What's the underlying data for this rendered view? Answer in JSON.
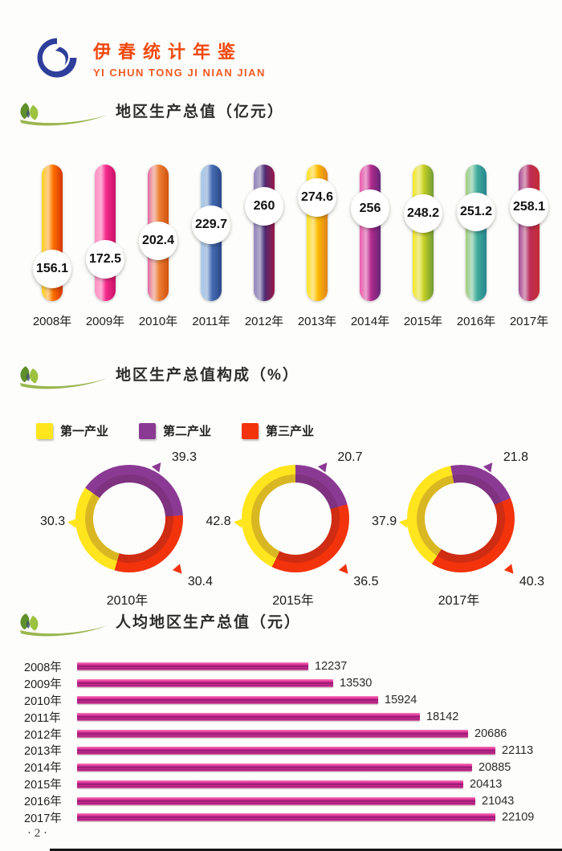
{
  "header": {
    "title": "伊春统计年鉴",
    "subtitle": "YI CHUN TONG JI NIAN JIAN",
    "logo_color": "#2e3e9b"
  },
  "footer": {
    "page_number": "· 2 ·"
  },
  "chart_data": [
    {
      "type": "bar",
      "style": "vertical-capsule",
      "title": "地区生产总值（亿元）",
      "categories": [
        "2008年",
        "2009年",
        "2010年",
        "2011年",
        "2012年",
        "2013年",
        "2014年",
        "2015年",
        "2016年",
        "2017年"
      ],
      "values": [
        156.1,
        172.5,
        202.4,
        229.7,
        260,
        274.6,
        256,
        248.2,
        251.2,
        258.1
      ],
      "value_labels": [
        "156.1",
        "172.5",
        "202.4",
        "229.7",
        "260",
        "274.6",
        "256",
        "248.2",
        "251.2",
        "258.1"
      ],
      "ylim": [
        140,
        300
      ],
      "capsule_gradients": [
        [
          "#ffd200",
          "#ff7b00",
          "#ee3d00"
        ],
        [
          "#ff8cc0",
          "#f83090",
          "#dd1470"
        ],
        [
          "#dd56a0",
          "#ef8640",
          "#e75c10"
        ],
        [
          "#a5cbe9",
          "#4a72ba",
          "#2f4f97"
        ],
        [
          "#8d7fba",
          "#3f2d76",
          "#a81b52"
        ],
        [
          "#ffe400",
          "#ffc000",
          "#f6921e"
        ],
        [
          "#ee4aa2",
          "#c02a90",
          "#6f2b86"
        ],
        [
          "#f4e400",
          "#cfd41c",
          "#7fae3e"
        ],
        [
          "#9fc868",
          "#46b29b",
          "#2b93a0"
        ],
        [
          "#94388c",
          "#b62a5e",
          "#d93338"
        ]
      ]
    },
    {
      "type": "pie",
      "style": "donut",
      "title": "地区生产总值构成（%）",
      "legend": [
        {
          "label": "第一产业",
          "color": "#ffe51e"
        },
        {
          "label": "第二产业",
          "color": "#8b3a94"
        },
        {
          "label": "第三产业",
          "color": "#f2330b"
        }
      ],
      "values_order": [
        "第一产业",
        "第二产业",
        "第三产业"
      ],
      "series": [
        {
          "name": "2010年",
          "values": [
            30.3,
            39.3,
            30.4
          ],
          "value_labels": [
            "30.3",
            "39.3",
            "30.4"
          ],
          "rotation": -55
        },
        {
          "name": "2015年",
          "values": [
            42.8,
            20.7,
            36.5
          ],
          "value_labels": [
            "42.8",
            "20.7",
            "36.5"
          ],
          "rotation": 0
        },
        {
          "name": "2017年",
          "values": [
            37.9,
            21.8,
            40.3
          ],
          "value_labels": [
            "37.9",
            "21.8",
            "40.3"
          ],
          "rotation": -11
        }
      ],
      "legend_position": "top"
    },
    {
      "type": "bar",
      "style": "horizontal",
      "title": "人均地区生产总值（元）",
      "categories": [
        "2008年",
        "2009年",
        "2010年",
        "2011年",
        "2012年",
        "2013年",
        "2014年",
        "2015年",
        "2016年",
        "2017年"
      ],
      "values": [
        12237,
        13530,
        15924,
        18142,
        20686,
        22113,
        20885,
        20413,
        21043,
        22109
      ],
      "value_labels": [
        "12237",
        "13530",
        "15924",
        "18142",
        "20686",
        "22113",
        "20885",
        "20413",
        "21043",
        "22109"
      ],
      "xlim": [
        0,
        22113
      ],
      "bar_color": "#d6308f"
    }
  ]
}
